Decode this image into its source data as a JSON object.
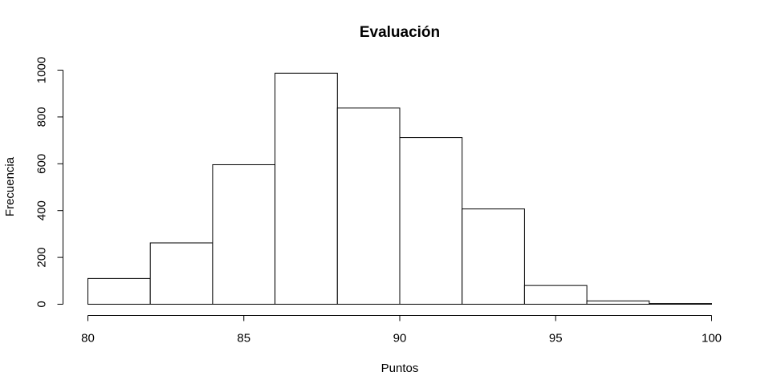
{
  "chart_data": {
    "type": "bar",
    "title": "Evaluación",
    "xlabel": "Puntos",
    "ylabel": "Frecuencia",
    "bins": [
      {
        "from": 80,
        "to": 82,
        "count": 110
      },
      {
        "from": 82,
        "to": 84,
        "count": 262
      },
      {
        "from": 84,
        "to": 86,
        "count": 596
      },
      {
        "from": 86,
        "to": 88,
        "count": 987
      },
      {
        "from": 88,
        "to": 90,
        "count": 838
      },
      {
        "from": 90,
        "to": 92,
        "count": 712
      },
      {
        "from": 92,
        "to": 94,
        "count": 407
      },
      {
        "from": 94,
        "to": 96,
        "count": 80
      },
      {
        "from": 96,
        "to": 98,
        "count": 14
      },
      {
        "from": 98,
        "to": 100,
        "count": 3
      }
    ],
    "xlim": [
      80,
      100
    ],
    "ylim": [
      0,
      1000
    ],
    "xticks": [
      80,
      85,
      90,
      95,
      100
    ],
    "yticks": [
      0,
      200,
      400,
      600,
      800,
      1000
    ],
    "grid": false,
    "bar_fill": "#ffffff",
    "bar_stroke": "#000000"
  }
}
